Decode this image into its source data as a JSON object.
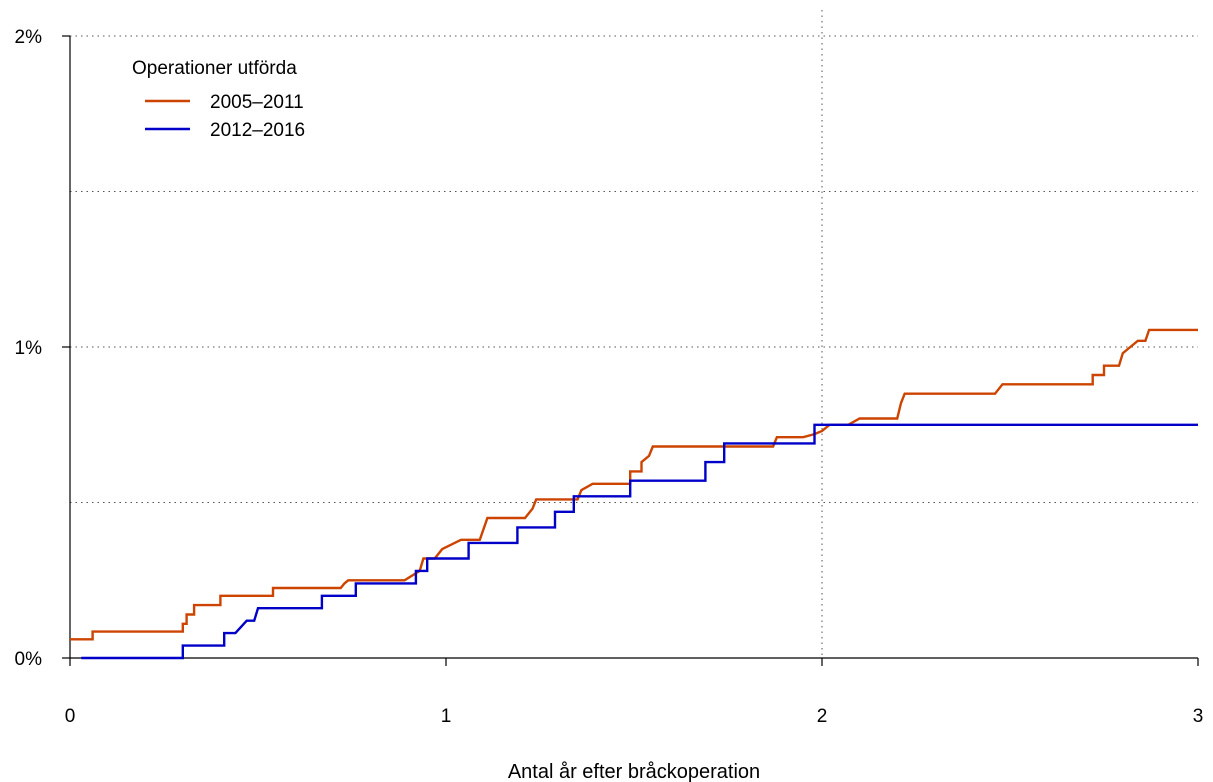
{
  "chart_data": {
    "type": "line",
    "xlabel": "Antal år efter bråckoperation",
    "ylabel": "",
    "xlim": [
      0,
      3
    ],
    "ylim": [
      0,
      2
    ],
    "x_ticks": [
      {
        "value": 0,
        "label": "0"
      },
      {
        "value": 1,
        "label": "1"
      },
      {
        "value": 2,
        "label": "2"
      },
      {
        "value": 3,
        "label": "3"
      }
    ],
    "y_ticks": [
      {
        "value": 0,
        "label": "0%"
      },
      {
        "value": 1,
        "label": "1%"
      },
      {
        "value": 2,
        "label": "2%"
      }
    ],
    "gridlines": {
      "horizontal": [
        0.5,
        1.0,
        1.5,
        2.0
      ],
      "vertical": [
        2
      ],
      "style": "dotted"
    },
    "legend": {
      "title": "Operationer utförda",
      "position": "top-left"
    },
    "series": [
      {
        "name": "2005–2011",
        "color": "#cc4400",
        "step": true,
        "points": [
          [
            0,
            0.06
          ],
          [
            0.06,
            0.06
          ],
          [
            0.06,
            0.085
          ],
          [
            0.3,
            0.085
          ],
          [
            0.3,
            0.11
          ],
          [
            0.31,
            0.11
          ],
          [
            0.31,
            0.14
          ],
          [
            0.33,
            0.14
          ],
          [
            0.33,
            0.17
          ],
          [
            0.37,
            0.17
          ],
          [
            0.4,
            0.17
          ],
          [
            0.4,
            0.2
          ],
          [
            0.52,
            0.2
          ],
          [
            0.54,
            0.2
          ],
          [
            0.54,
            0.225
          ],
          [
            0.69,
            0.225
          ],
          [
            0.72,
            0.225
          ],
          [
            0.73,
            0.24
          ],
          [
            0.74,
            0.25
          ],
          [
            0.89,
            0.25
          ],
          [
            0.93,
            0.28
          ],
          [
            0.94,
            0.32
          ],
          [
            0.97,
            0.32
          ],
          [
            0.99,
            0.35
          ],
          [
            1.04,
            0.38
          ],
          [
            1.09,
            0.38
          ],
          [
            1.11,
            0.45
          ],
          [
            1.21,
            0.45
          ],
          [
            1.23,
            0.48
          ],
          [
            1.24,
            0.51
          ],
          [
            1.35,
            0.51
          ],
          [
            1.36,
            0.54
          ],
          [
            1.39,
            0.56
          ],
          [
            1.49,
            0.56
          ],
          [
            1.49,
            0.6
          ],
          [
            1.52,
            0.6
          ],
          [
            1.52,
            0.63
          ],
          [
            1.54,
            0.65
          ],
          [
            1.55,
            0.68
          ],
          [
            1.87,
            0.68
          ],
          [
            1.88,
            0.71
          ],
          [
            1.95,
            0.71
          ],
          [
            1.98,
            0.72
          ],
          [
            2.0,
            0.73
          ],
          [
            2.02,
            0.75
          ],
          [
            2.07,
            0.75
          ],
          [
            2.1,
            0.77
          ],
          [
            2.2,
            0.77
          ],
          [
            2.21,
            0.82
          ],
          [
            2.22,
            0.85
          ],
          [
            2.46,
            0.85
          ],
          [
            2.48,
            0.88
          ],
          [
            2.72,
            0.88
          ],
          [
            2.72,
            0.91
          ],
          [
            2.75,
            0.91
          ],
          [
            2.75,
            0.94
          ],
          [
            2.79,
            0.94
          ],
          [
            2.8,
            0.98
          ],
          [
            2.82,
            1.0
          ],
          [
            2.84,
            1.02
          ],
          [
            2.86,
            1.02
          ],
          [
            2.87,
            1.055
          ],
          [
            3.0,
            1.055
          ]
        ]
      },
      {
        "name": "2012–2016",
        "color": "#0000c8",
        "step": true,
        "points": [
          [
            0.03,
            0.0
          ],
          [
            0.3,
            0.0
          ],
          [
            0.3,
            0.04
          ],
          [
            0.41,
            0.04
          ],
          [
            0.41,
            0.08
          ],
          [
            0.44,
            0.08
          ],
          [
            0.47,
            0.12
          ],
          [
            0.49,
            0.12
          ],
          [
            0.5,
            0.16
          ],
          [
            0.67,
            0.16
          ],
          [
            0.67,
            0.2
          ],
          [
            0.76,
            0.2
          ],
          [
            0.76,
            0.24
          ],
          [
            0.92,
            0.24
          ],
          [
            0.92,
            0.28
          ],
          [
            0.95,
            0.28
          ],
          [
            0.95,
            0.32
          ],
          [
            1.06,
            0.32
          ],
          [
            1.06,
            0.37
          ],
          [
            1.19,
            0.37
          ],
          [
            1.19,
            0.42
          ],
          [
            1.29,
            0.42
          ],
          [
            1.29,
            0.47
          ],
          [
            1.34,
            0.47
          ],
          [
            1.34,
            0.52
          ],
          [
            1.49,
            0.52
          ],
          [
            1.49,
            0.57
          ],
          [
            1.69,
            0.57
          ],
          [
            1.69,
            0.63
          ],
          [
            1.74,
            0.63
          ],
          [
            1.74,
            0.69
          ],
          [
            1.98,
            0.69
          ],
          [
            1.98,
            0.75
          ],
          [
            3.0,
            0.75
          ]
        ]
      }
    ]
  }
}
